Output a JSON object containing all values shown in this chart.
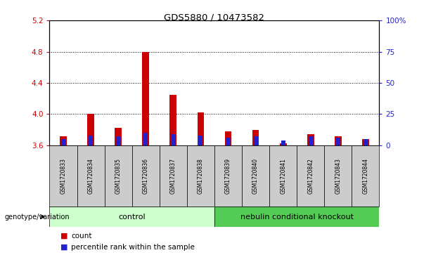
{
  "title": "GDS5880 / 10473582",
  "samples": [
    "GSM1720833",
    "GSM1720834",
    "GSM1720835",
    "GSM1720836",
    "GSM1720837",
    "GSM1720838",
    "GSM1720839",
    "GSM1720840",
    "GSM1720841",
    "GSM1720842",
    "GSM1720843",
    "GSM1720844"
  ],
  "count_values": [
    3.72,
    4.0,
    3.82,
    4.8,
    4.25,
    4.02,
    3.78,
    3.8,
    3.63,
    3.74,
    3.72,
    3.68
  ],
  "percentile_values": [
    5,
    8,
    7,
    10,
    9,
    8,
    6,
    7,
    4,
    7,
    6,
    5
  ],
  "y_min": 3.6,
  "y_max": 5.2,
  "y_ticks_left": [
    3.6,
    4.0,
    4.4,
    4.8,
    5.2
  ],
  "y_ticks_right": [
    0,
    25,
    50,
    75,
    100
  ],
  "y_ticks_right_labels": [
    "0",
    "25",
    "50",
    "75",
    "100%"
  ],
  "dotted_lines": [
    4.0,
    4.4,
    4.8
  ],
  "bar_color_red": "#cc0000",
  "bar_color_blue": "#2222cc",
  "control_samples": 6,
  "control_label": "control",
  "knockout_label": "nebulin conditional knockout",
  "control_bg": "#ccffcc",
  "knockout_bg": "#55cc55",
  "sample_bg": "#cccccc",
  "genotype_label": "genotype/variation",
  "legend_count": "count",
  "legend_percentile": "percentile rank within the sample",
  "red_bar_width": 0.25,
  "blue_bar_width": 0.15,
  "base_value": 3.6
}
